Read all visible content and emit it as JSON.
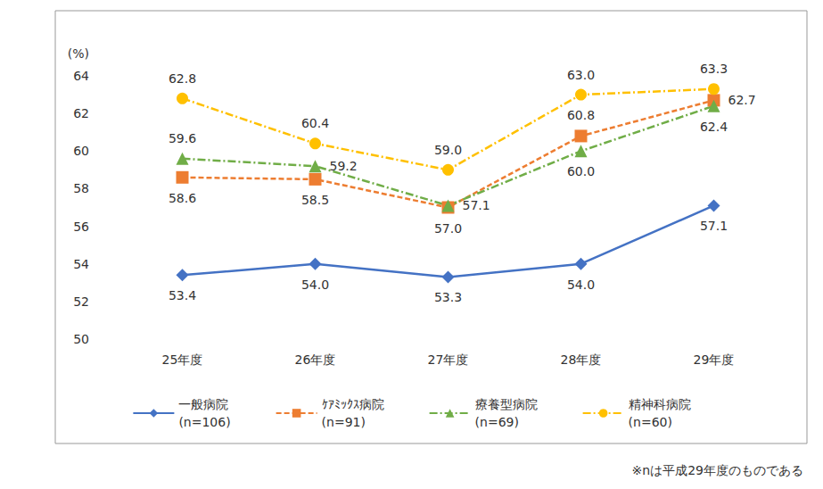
{
  "chart_data": {
    "type": "line",
    "ylabel": "(%)",
    "annotations": [
      "※nは平成29年度のものである"
    ],
    "categories": [
      "25年度",
      "26年度",
      "27年度",
      "28年度",
      "29年度"
    ],
    "ylim": [
      50,
      64
    ],
    "yticks": [
      50,
      52,
      54,
      56,
      58,
      60,
      62,
      64
    ],
    "grid": false,
    "legend": "bottom",
    "data_labels": true,
    "series": [
      {
        "name": "一般病院\n(n=106)",
        "color": "#4472c4",
        "marker": "diamond",
        "line_style": "solid",
        "values": [
          53.4,
          54.0,
          53.3,
          54.0,
          57.1
        ],
        "value_labels": [
          "53.4",
          "54.0",
          "53.3",
          "54.0",
          "57.1"
        ]
      },
      {
        "name": "ｹｱﾐｯｸｽ病院\n(n=91)",
        "color": "#ed7d31",
        "marker": "square",
        "line_style": "dashed",
        "values": [
          58.6,
          58.5,
          57.0,
          60.8,
          62.7
        ],
        "value_labels": [
          "58.6",
          "58.5",
          "57.0",
          "60.8",
          "62.7"
        ]
      },
      {
        "name": "療養型病院\n(n=69)",
        "color": "#70ad47",
        "marker": "triangle",
        "line_style": "dashdot",
        "values": [
          59.6,
          59.2,
          57.1,
          60.0,
          62.4
        ],
        "value_labels": [
          "59.6",
          "59.2",
          "57.1",
          "60.0",
          "62.4"
        ]
      },
      {
        "name": "精神科病院\n(n=60)",
        "color": "#ffc000",
        "marker": "circle",
        "line_style": "dashdot",
        "values": [
          62.8,
          60.4,
          59.0,
          63.0,
          63.3
        ],
        "value_labels": [
          "62.8",
          "60.4",
          "59.0",
          "63.0",
          "63.3"
        ]
      }
    ]
  }
}
